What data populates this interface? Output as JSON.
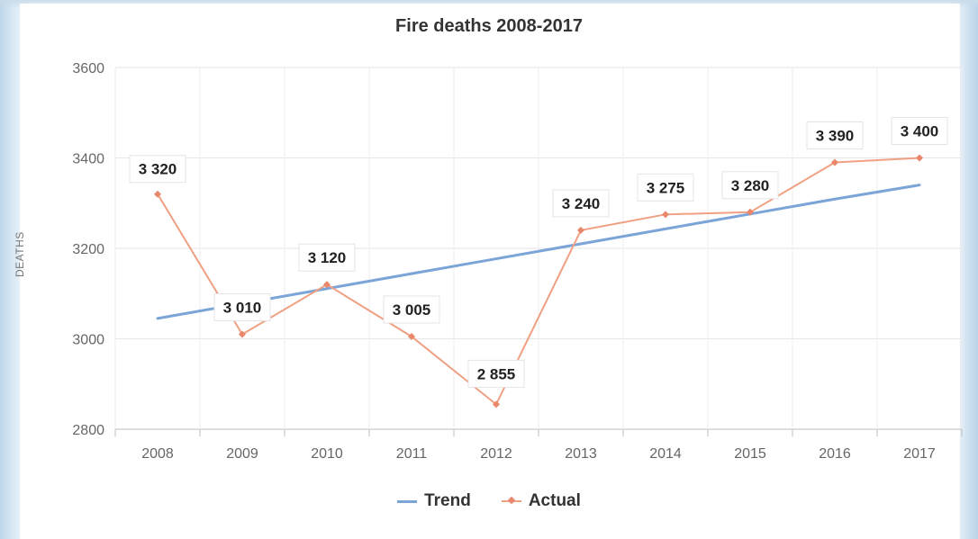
{
  "chart_data": {
    "type": "line",
    "title": "Fire deaths 2008-2017",
    "xlabel": "",
    "ylabel": "DEATHS",
    "categories": [
      "2008",
      "2009",
      "2010",
      "2011",
      "2012",
      "2013",
      "2014",
      "2015",
      "2016",
      "2017"
    ],
    "ylim": [
      2800,
      3600
    ],
    "yticks": [
      2800,
      3000,
      3200,
      3400,
      3600
    ],
    "grid": true,
    "legend_position": "bottom-center",
    "series": [
      {
        "name": "Trend",
        "color": "#7ba4d8",
        "values": [
          3045,
          3078,
          3111,
          3144,
          3177,
          3210,
          3243,
          3276,
          3309,
          3340
        ]
      },
      {
        "name": "Actual",
        "color": "#f0a083",
        "marker": "diamond",
        "values": [
          3320,
          3010,
          3120,
          3005,
          2855,
          3240,
          3275,
          3280,
          3390,
          3400
        ],
        "data_labels": [
          "3 320",
          "3 010",
          "3 120",
          "3 005",
          "2 855",
          "3 240",
          "3 275",
          "3 280",
          "3 390",
          "3 400"
        ]
      }
    ]
  }
}
